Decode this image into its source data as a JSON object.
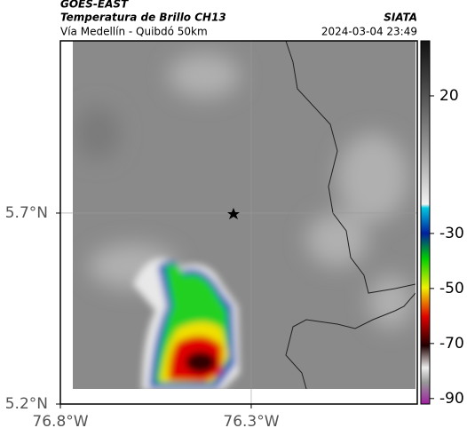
{
  "header": {
    "source": "GOES-EAST",
    "title": "Temperatura de Brillo CH13",
    "subtitle": "Vía Medellín - Quibdó 50km",
    "brand": "SIATA",
    "datetime": "2024-03-04 23:49"
  },
  "map": {
    "xlim": [
      -76.8,
      -75.865
    ],
    "ylim": [
      5.2,
      6.151
    ],
    "xticks": [
      {
        "value": -76.8,
        "label": "76.8°W"
      },
      {
        "value": -76.3,
        "label": "76.3°W"
      }
    ],
    "yticks": [
      {
        "value": 5.7,
        "label": "5.7°N"
      },
      {
        "value": 5.2,
        "label": "5.2°N"
      }
    ]
  },
  "colorbar": {
    "lim": [
      -92,
      40
    ],
    "ticks": [
      20,
      -30,
      -50,
      -70,
      -90
    ]
  }
}
